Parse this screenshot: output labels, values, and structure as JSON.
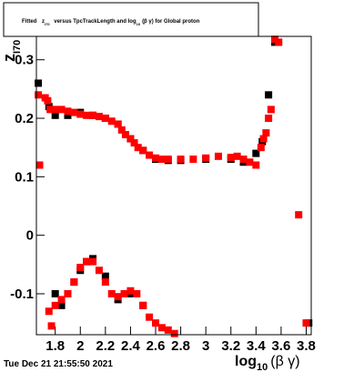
{
  "chart_data": {
    "type": "scatter",
    "title_parts": [
      "Fitted",
      "z",
      "I70",
      "versus TpcTrackLength and log",
      "10",
      "(β γ) for Global proton"
    ],
    "ylabel_parts": [
      "z",
      "I70"
    ],
    "xlabel_parts": [
      "log",
      "10",
      "(β γ)"
    ],
    "timestamp": "Tue Dec 21 21:55:50 2021",
    "xlim": [
      1.65,
      3.84
    ],
    "ylim": [
      -0.17,
      0.34
    ],
    "xticks": [
      1.8,
      2,
      2.2,
      2.4,
      2.6,
      2.8,
      3,
      3.2,
      3.4,
      3.6,
      3.8
    ],
    "yticks": [
      -0.1,
      0,
      0.1,
      0.2,
      0.3
    ],
    "series": [
      {
        "color": "#000000",
        "x": [
          1.665,
          1.675,
          1.75,
          1.8,
          1.9,
          2.0,
          2.1,
          2.2,
          2.3,
          2.4,
          2.5,
          2.6,
          2.7,
          2.8,
          3.0,
          3.2,
          3.3,
          3.4,
          3.45,
          3.5,
          3.55,
          3.58,
          3.82,
          1.8,
          1.85,
          1.9,
          1.95,
          2.0,
          2.05,
          2.1,
          2.2,
          2.3,
          2.4,
          2.5
        ],
        "values": [
          0.26,
          0.12,
          0.22,
          0.205,
          0.205,
          0.21,
          0.205,
          0.2,
          0.19,
          0.165,
          0.145,
          0.13,
          0.128,
          0.128,
          0.13,
          0.13,
          0.125,
          0.14,
          0.16,
          0.24,
          0.33,
          0.33,
          -0.15,
          -0.1,
          -0.12,
          -0.1,
          -0.08,
          -0.06,
          -0.045,
          -0.04,
          -0.07,
          -0.11,
          -0.1,
          -0.12
        ]
      },
      {
        "color": "#ff0000",
        "x": [
          1.665,
          1.675,
          1.72,
          1.74,
          1.76,
          1.8,
          1.85,
          1.9,
          1.95,
          2.0,
          2.05,
          2.1,
          2.15,
          2.2,
          2.25,
          2.3,
          2.33,
          2.36,
          2.4,
          2.43,
          2.46,
          2.5,
          2.55,
          2.6,
          2.65,
          2.7,
          2.8,
          2.9,
          3.0,
          3.1,
          3.2,
          3.25,
          3.3,
          3.35,
          3.4,
          3.44,
          3.46,
          3.48,
          3.5,
          3.52,
          3.55,
          3.58,
          3.74,
          3.8,
          1.75,
          1.77,
          1.8,
          1.85,
          1.9,
          1.95,
          2.0,
          2.05,
          2.1,
          2.15,
          2.2,
          2.25,
          2.3,
          2.35,
          2.4,
          2.45,
          2.5,
          2.55,
          2.6,
          2.65,
          2.7,
          2.75
        ],
        "values": [
          0.24,
          0.12,
          0.235,
          0.23,
          0.215,
          0.215,
          0.215,
          0.212,
          0.21,
          0.207,
          0.205,
          0.205,
          0.203,
          0.2,
          0.195,
          0.19,
          0.18,
          0.172,
          0.165,
          0.158,
          0.15,
          0.145,
          0.137,
          0.132,
          0.13,
          0.13,
          0.13,
          0.13,
          0.132,
          0.135,
          0.133,
          0.135,
          0.13,
          0.125,
          0.12,
          0.15,
          0.165,
          0.175,
          0.2,
          0.215,
          0.335,
          0.33,
          0.035,
          -0.15,
          -0.13,
          -0.155,
          -0.12,
          -0.11,
          -0.1,
          -0.08,
          -0.055,
          -0.045,
          -0.045,
          -0.06,
          -0.08,
          -0.1,
          -0.105,
          -0.1,
          -0.095,
          -0.1,
          -0.12,
          -0.14,
          -0.15,
          -0.158,
          -0.162,
          -0.168
        ]
      }
    ]
  }
}
